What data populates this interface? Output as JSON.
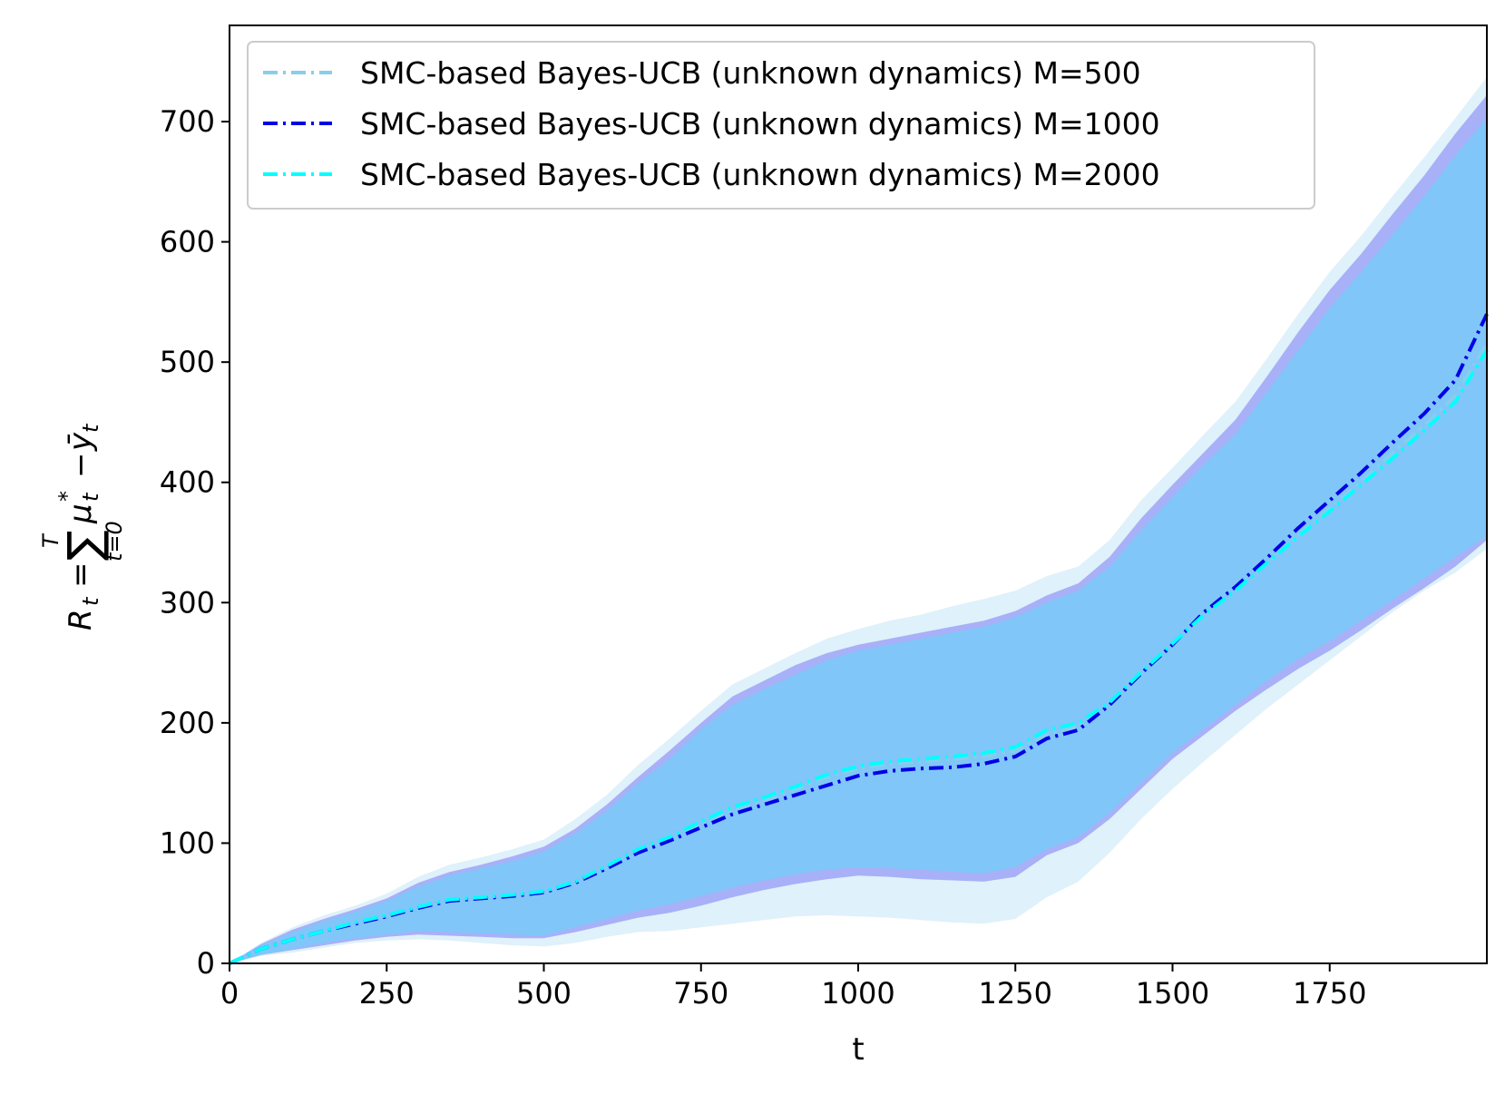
{
  "chart_data": {
    "type": "line",
    "title": "",
    "xlabel": "t",
    "ylabel": {
      "lhs": "R",
      "lhs_sub": "t",
      "eq": "=",
      "sum_upper": "T",
      "sum_lower": "t=0",
      "sum_symbol": "∑",
      "term1": "μ",
      "term1_sup": "*",
      "term1_sub": "t",
      "minus": "−",
      "term2": "ȳ",
      "term2_sub": "t"
    },
    "xlim": [
      0,
      2000
    ],
    "ylim": [
      0,
      780
    ],
    "xticks": [
      0,
      250,
      500,
      750,
      1000,
      1250,
      1500,
      1750
    ],
    "yticks": [
      0,
      100,
      200,
      300,
      400,
      500,
      600,
      700
    ],
    "grid": false,
    "legend_position": "top-left",
    "x": [
      0,
      50,
      100,
      150,
      200,
      250,
      300,
      350,
      400,
      450,
      500,
      550,
      600,
      650,
      700,
      750,
      800,
      850,
      900,
      950,
      1000,
      1050,
      1100,
      1150,
      1200,
      1250,
      1300,
      1350,
      1400,
      1450,
      1500,
      1550,
      1600,
      1650,
      1700,
      1750,
      1800,
      1850,
      1900,
      1950,
      2000
    ],
    "series": [
      {
        "name": "SMC-based Bayes-UCB (unknown dynamics) M=500",
        "color": "#87ceeb",
        "band_color": "#dff1fa",
        "line_style": "dash-dot",
        "values": [
          0,
          12,
          20,
          27,
          33,
          39,
          46,
          52,
          54,
          56,
          59,
          67,
          80,
          93,
          103,
          116,
          128,
          136,
          145,
          155,
          162,
          166,
          168,
          170,
          172,
          177,
          190,
          197,
          215,
          240,
          264,
          290,
          310,
          333,
          356,
          378,
          400,
          424,
          447,
          472,
          515
        ],
        "lower": [
          0,
          6,
          9,
          13,
          17,
          19,
          20,
          19,
          17,
          15,
          14,
          17,
          22,
          26,
          27,
          30,
          33,
          36,
          39,
          40,
          39,
          38,
          36,
          34,
          33,
          37,
          55,
          68,
          92,
          120,
          145,
          168,
          190,
          212,
          232,
          252,
          272,
          292,
          310,
          325,
          345
        ],
        "upper": [
          0,
          17,
          30,
          40,
          48,
          58,
          72,
          82,
          88,
          95,
          103,
          120,
          140,
          165,
          187,
          210,
          232,
          245,
          258,
          270,
          278,
          285,
          290,
          297,
          303,
          310,
          322,
          330,
          352,
          385,
          412,
          440,
          467,
          503,
          540,
          575,
          605,
          638,
          670,
          703,
          737
        ]
      },
      {
        "name": "SMC-based Bayes-UCB (unknown dynamics) M=1000",
        "color": "#0000e6",
        "band_color": "#a8b0f8",
        "line_style": "dash-dot",
        "values": [
          0,
          12,
          20,
          27,
          33,
          39,
          46,
          52,
          54,
          56,
          59,
          67,
          79,
          92,
          102,
          113,
          124,
          132,
          140,
          148,
          156,
          160,
          162,
          163,
          166,
          172,
          187,
          194,
          215,
          241,
          265,
          292,
          313,
          337,
          362,
          385,
          408,
          433,
          457,
          485,
          540
        ],
        "lower": [
          0,
          7,
          11,
          15,
          19,
          22,
          24,
          23,
          22,
          21,
          21,
          26,
          32,
          38,
          42,
          48,
          55,
          61,
          66,
          70,
          73,
          72,
          70,
          69,
          68,
          72,
          90,
          100,
          120,
          145,
          170,
          190,
          210,
          228,
          245,
          260,
          277,
          295,
          312,
          330,
          352
        ],
        "upper": [
          0,
          16,
          28,
          37,
          45,
          54,
          67,
          76,
          82,
          89,
          97,
          112,
          132,
          155,
          177,
          200,
          222,
          235,
          248,
          258,
          265,
          270,
          275,
          280,
          285,
          293,
          306,
          316,
          338,
          370,
          398,
          425,
          452,
          488,
          525,
          560,
          590,
          623,
          655,
          690,
          722
        ]
      },
      {
        "name": "SMC-based Bayes-UCB (unknown dynamics) M=2000",
        "color": "#00ffff",
        "band_color": "#80c6f8",
        "line_style": "dash-dot",
        "values": [
          0,
          12,
          20,
          27,
          34,
          40,
          47,
          53,
          55,
          57,
          60,
          68,
          81,
          95,
          105,
          118,
          130,
          138,
          147,
          157,
          164,
          168,
          170,
          172,
          175,
          180,
          194,
          200,
          217,
          242,
          266,
          290,
          310,
          333,
          355,
          376,
          398,
          420,
          443,
          467,
          510
        ],
        "lower": [
          0,
          7,
          12,
          17,
          21,
          24,
          27,
          26,
          25,
          24,
          23,
          30,
          37,
          44,
          49,
          56,
          63,
          69,
          74,
          78,
          80,
          79,
          78,
          76,
          75,
          80,
          95,
          105,
          125,
          150,
          175,
          195,
          215,
          235,
          253,
          268,
          285,
          302,
          320,
          338,
          355
        ],
        "upper": [
          0,
          15,
          26,
          35,
          43,
          52,
          64,
          73,
          79,
          85,
          93,
          108,
          127,
          150,
          170,
          195,
          215,
          228,
          240,
          252,
          260,
          265,
          270,
          275,
          280,
          288,
          300,
          310,
          330,
          360,
          388,
          415,
          440,
          475,
          510,
          545,
          575,
          606,
          638,
          672,
          703
        ]
      }
    ]
  }
}
